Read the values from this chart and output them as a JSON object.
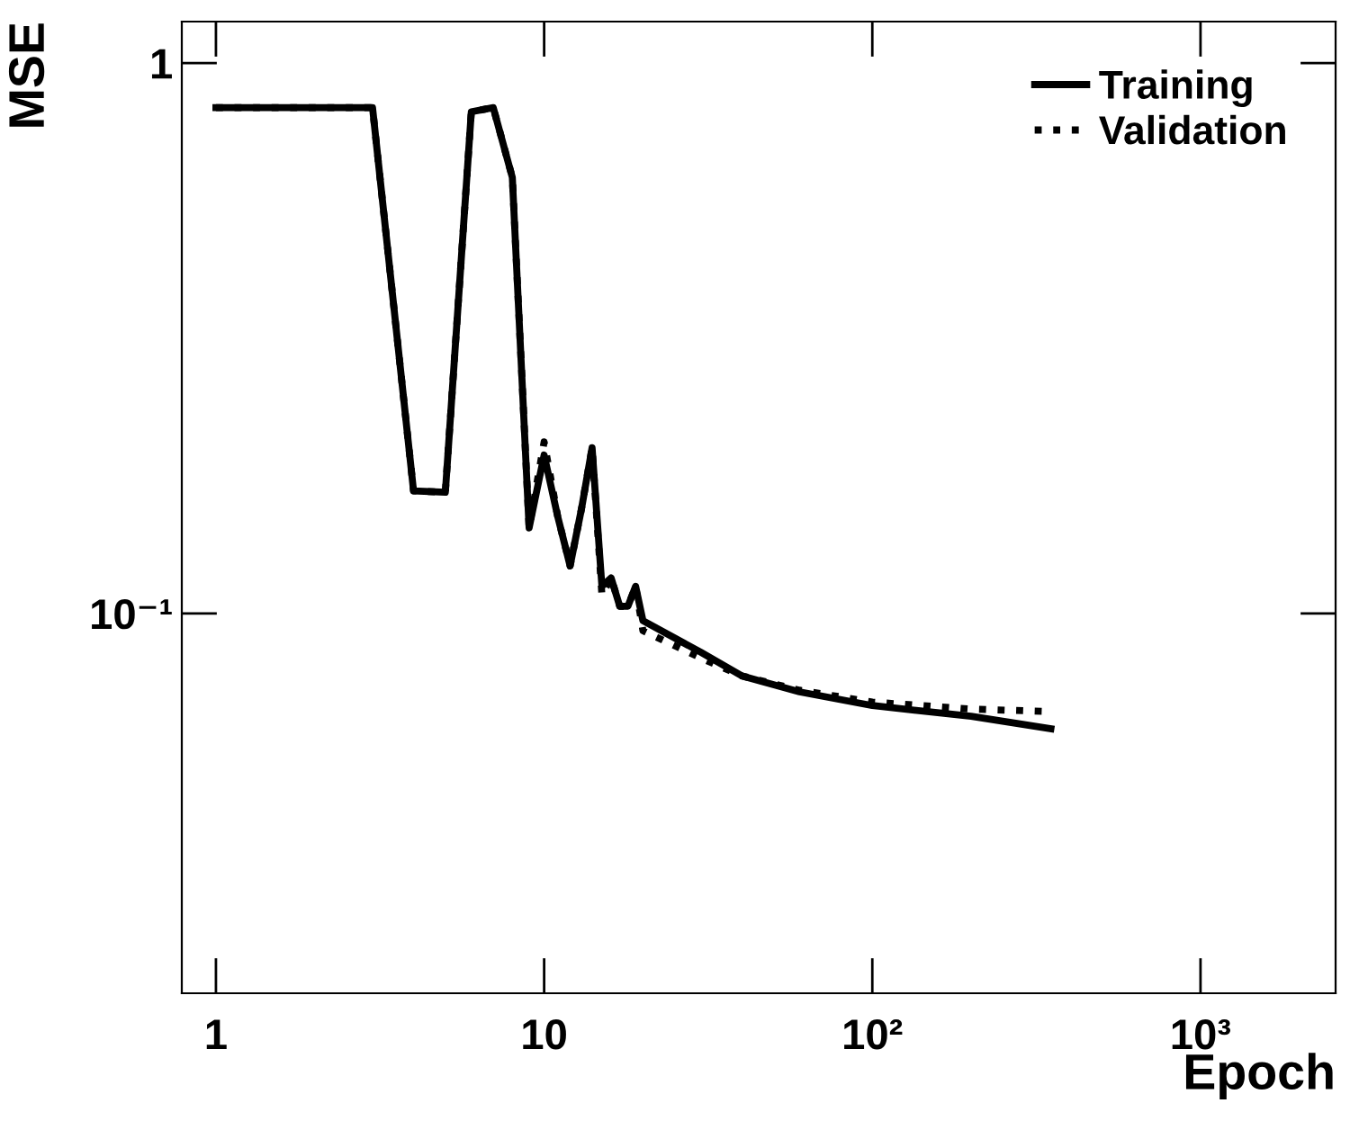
{
  "chart_data": {
    "type": "line",
    "xlabel": "Epoch",
    "ylabel": "MSE",
    "log": "xy",
    "xlim": [
      0.787,
      2580
    ],
    "ylim": [
      0.0204,
      1.19
    ],
    "xticks": [
      1,
      10,
      {
        "value": 100,
        "label": "10²"
      },
      {
        "value": 1000,
        "label": "10³"
      }
    ],
    "yticks": [
      {
        "value": 0.1,
        "label": "10⁻¹"
      },
      1
    ],
    "legend": "top right",
    "grid": false,
    "marker": "none",
    "x": [
      1,
      2,
      3,
      4,
      5,
      6,
      7,
      8,
      9,
      10,
      11,
      12,
      13,
      14,
      15,
      16,
      17,
      18,
      19,
      20,
      30,
      40,
      60,
      100,
      200,
      350
    ],
    "series": [
      {
        "name": "Training",
        "color": "#000000",
        "line_style": "solid",
        "values": [
          0.83,
          0.83,
          0.83,
          0.167,
          0.166,
          0.816,
          0.83,
          0.62,
          0.143,
          0.194,
          0.15,
          0.122,
          0.155,
          0.2,
          0.112,
          0.116,
          0.103,
          0.103,
          0.112,
          0.097,
          0.085,
          0.077,
          0.072,
          0.068,
          0.065,
          0.0617
        ]
      },
      {
        "name": "Validation",
        "color": "#000000",
        "line_style": "dotted",
        "values": [
          0.83,
          0.83,
          0.83,
          0.167,
          0.166,
          0.816,
          0.83,
          0.62,
          0.143,
          0.205,
          0.15,
          0.122,
          0.155,
          0.2,
          0.108,
          0.116,
          0.103,
          0.103,
          0.112,
          0.093,
          0.083,
          0.077,
          0.0725,
          0.069,
          0.067,
          0.0663
        ]
      }
    ]
  }
}
